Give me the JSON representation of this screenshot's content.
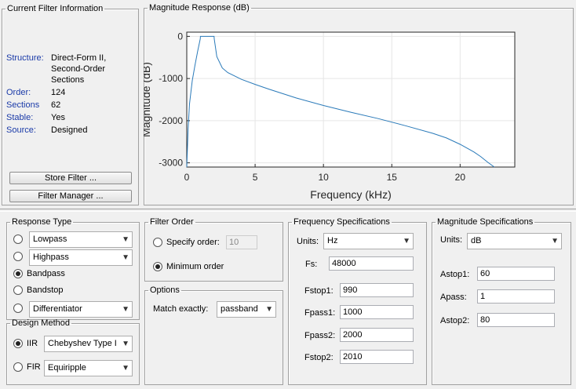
{
  "filter_info": {
    "title": "Current Filter Information",
    "structure_label": "Structure:",
    "structure_value": [
      "Direct-Form II,",
      "Second-Order",
      "Sections"
    ],
    "order_label": "Order:",
    "order_value": "124",
    "sections_label": "Sections",
    "sections_value": "62",
    "stable_label": "Stable:",
    "stable_value": "Yes",
    "source_label": "Source:",
    "source_value": "Designed",
    "store_button": "Store Filter ...",
    "manager_button": "Filter Manager ..."
  },
  "magnitude_plot": {
    "title": "Magnitude Response (dB)"
  },
  "chart_data": {
    "type": "line",
    "xlabel": "Frequency (kHz)",
    "ylabel": "Magnitude (dB)",
    "xlim": [
      0,
      24
    ],
    "ylim": [
      -3100,
      100
    ],
    "x_ticks": [
      0,
      5,
      10,
      15,
      20
    ],
    "y_ticks": [
      0,
      -1000,
      -2000,
      -3000
    ],
    "x_tick_labels": [
      "0",
      "5",
      "10",
      "15",
      "20"
    ],
    "y_tick_labels": [
      "0",
      "-1000",
      "-2000",
      "-3000"
    ],
    "grid": true,
    "color": "#2a7ab9",
    "series": [
      {
        "x": [
          0,
          0.1,
          0.2,
          0.4,
          0.6,
          0.8,
          0.99,
          1.0,
          2.0,
          2.01,
          2.2,
          2.6,
          3.0,
          4.0,
          5.0,
          6.0,
          8.0,
          10.0,
          12.0,
          14.0,
          16.0,
          18.0,
          19.0,
          20.0,
          21.0,
          21.5,
          22.0,
          22.5
        ],
        "y": [
          -3100,
          -2200,
          -1600,
          -1050,
          -680,
          -350,
          -60,
          0,
          0,
          -60,
          -480,
          -750,
          -860,
          -1020,
          -1140,
          -1250,
          -1460,
          -1640,
          -1800,
          -1950,
          -2120,
          -2300,
          -2410,
          -2560,
          -2740,
          -2850,
          -2980,
          -3100
        ]
      }
    ]
  },
  "response_type": {
    "title": "Response Type",
    "options": [
      "Lowpass",
      "Highpass",
      "Bandpass",
      "Bandstop",
      "Differentiator"
    ]
  },
  "design_method": {
    "title": "Design Method",
    "iir_label": "IIR",
    "iir_value": "Chebyshev Type I",
    "fir_label": "FIR",
    "fir_value": "Equiripple"
  },
  "filter_order": {
    "title": "Filter Order",
    "specify_label": "Specify order:",
    "specify_value": "10",
    "minimum_label": "Minimum order"
  },
  "options": {
    "title": "Options",
    "match_label": "Match exactly:",
    "match_value": "passband"
  },
  "freq_specs": {
    "title": "Frequency Specifications",
    "units_label": "Units:",
    "units_value": "Hz",
    "fs_label": "Fs:",
    "fs_value": "48000",
    "fstop1_label": "Fstop1:",
    "fstop1_value": "990",
    "fpass1_label": "Fpass1:",
    "fpass1_value": "1000",
    "fpass2_label": "Fpass2:",
    "fpass2_value": "2000",
    "fstop2_label": "Fstop2:",
    "fstop2_value": "2010"
  },
  "mag_specs": {
    "title": "Magnitude Specifications",
    "units_label": "Units:",
    "units_value": "dB",
    "astop1_label": "Astop1:",
    "astop1_value": "60",
    "apass_label": "Apass:",
    "apass_value": "1",
    "astop2_label": "Astop2:",
    "astop2_value": "80"
  }
}
